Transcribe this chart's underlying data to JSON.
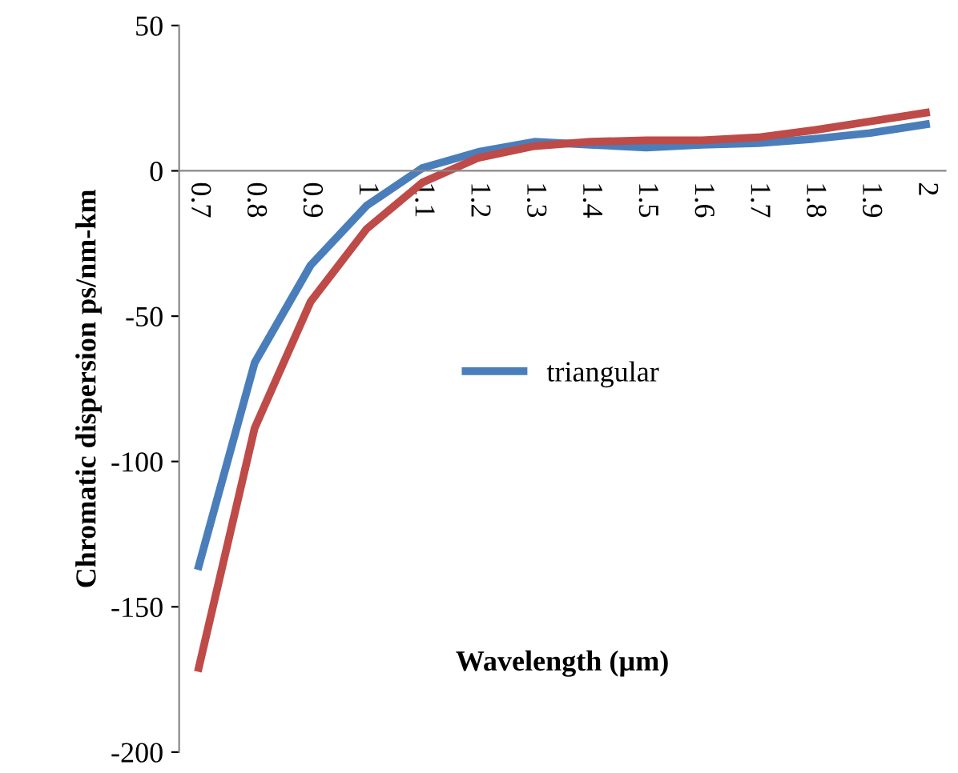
{
  "chart_data": {
    "type": "line",
    "xlabel": "Wavelength (µm)",
    "ylabel": "Chromatic dispersion ps/nm-km",
    "categories": [
      "0.7",
      "0.8",
      "0.9",
      "1",
      "1.1",
      "1.2",
      "1.3",
      "1.4",
      "1.5",
      "1.6",
      "1.7",
      "1.8",
      "1.9",
      "2"
    ],
    "series": [
      {
        "name": "triangular",
        "color": "#4a7ebb",
        "values": [
          -136,
          -66,
          -32.5,
          -12,
          1,
          6.5,
          10,
          9,
          8,
          9,
          9.5,
          11,
          13,
          16
        ]
      },
      {
        "color": "#be4b48",
        "values": [
          -171,
          -88.5,
          -45,
          -20,
          -4,
          4.5,
          8.5,
          10,
          10.5,
          10.5,
          11.5,
          14,
          17,
          20
        ]
      }
    ],
    "ylim": [
      -200,
      50
    ],
    "yticks": [
      -200,
      -150,
      -100,
      -50,
      0,
      50
    ],
    "grid": false,
    "legend": "center",
    "marker": "none",
    "line_style": "solid"
  }
}
